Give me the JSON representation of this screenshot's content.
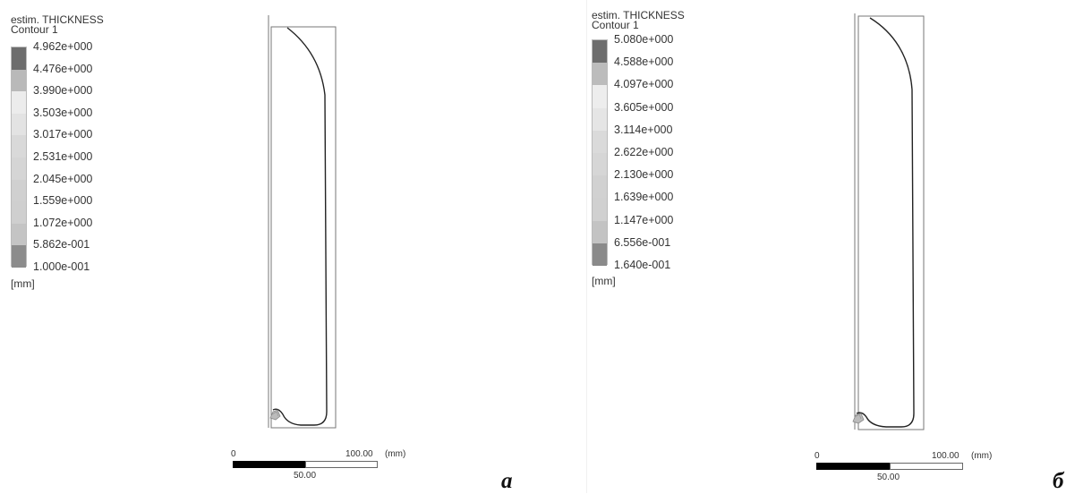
{
  "panels": [
    {
      "id": "a",
      "legend": {
        "title_line1": "estim. THICKNESS",
        "title_line2": "Contour 1",
        "labels": [
          "4.962e+000",
          "4.476e+000",
          "3.990e+000",
          "3.503e+000",
          "3.017e+000",
          "2.531e+000",
          "2.045e+000",
          "1.559e+000",
          "1.072e+000",
          "5.862e-001",
          "1.000e-001"
        ],
        "swatch_colors": [
          "#6d6d6d",
          "#b9b9b9",
          "#ececec",
          "#e3e3e3",
          "#d9d9d9",
          "#d5d5d5",
          "#d0d0d0",
          "#cfcfcf",
          "#c4c4c4",
          "#8c8c8c",
          "#555555"
        ],
        "unit": "[mm]"
      },
      "scale": {
        "zero": "0",
        "max": "100.00",
        "unit": "(mm)",
        "mid": "50.00"
      },
      "letter": "a"
    },
    {
      "id": "b",
      "legend": {
        "title_line1": "estim. THICKNESS",
        "title_line2": "Contour 1",
        "labels": [
          "5.080e+000",
          "4.588e+000",
          "4.097e+000",
          "3.605e+000",
          "3.114e+000",
          "2.622e+000",
          "2.130e+000",
          "1.639e+000",
          "1.147e+000",
          "6.556e-001",
          "1.640e-001"
        ],
        "swatch_colors": [
          "#6d6d6d",
          "#bcbcbc",
          "#ededed",
          "#e5e5e5",
          "#dadada",
          "#d6d6d6",
          "#d1d1d1",
          "#d0d0d0",
          "#c3c3c3",
          "#8a8a8a",
          "#555555"
        ],
        "unit": "[mm]"
      },
      "scale": {
        "zero": "0",
        "max": "100.00",
        "unit": "(mm)",
        "mid": "50.00"
      },
      "letter": "б"
    }
  ]
}
